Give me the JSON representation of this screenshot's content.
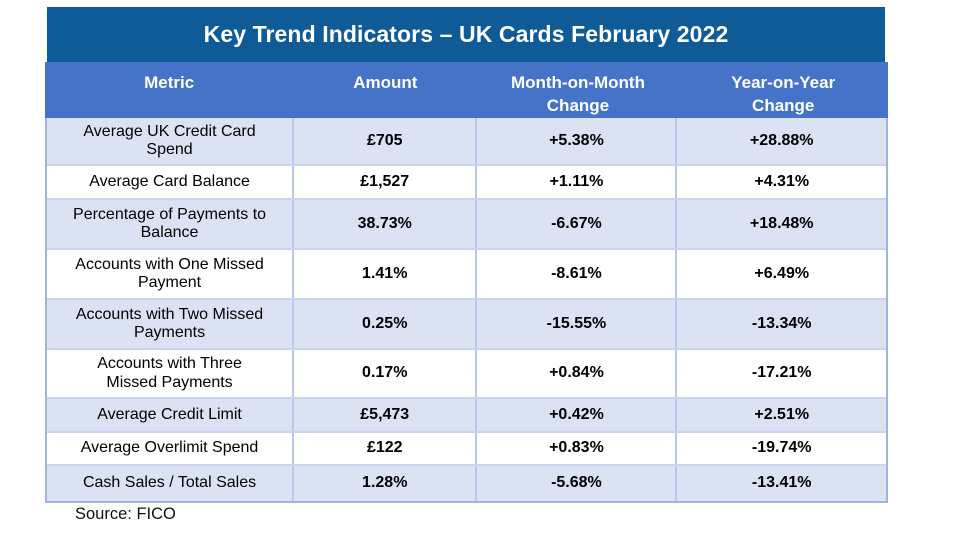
{
  "page": {
    "title": "Key Trend Indicators – UK Cards February 2022",
    "source_note": "Source: FICO"
  },
  "colors": {
    "title_band": "#0e5b97",
    "header_row": "#4573c7",
    "row_alternate": "#dae2f3",
    "row_plain": "#ffffff",
    "row_border": "#b9c8ec",
    "outer_border": "#9fb4df",
    "header_text": "#ffffff",
    "body_text": "#000000"
  },
  "chart_data": {
    "type": "table",
    "title": "Key Trend Indicators – UK Cards February 2022",
    "columns": [
      "Metric",
      "Amount",
      "Month-on-Month Change",
      "Year-on-Year Change"
    ],
    "rows": [
      {
        "metric": "Average UK Credit Card Spend",
        "amount": "£705",
        "mom_change": "+5.38%",
        "yoy_change": "+28.88%"
      },
      {
        "metric": "Average Card Balance",
        "amount": "£1,527",
        "mom_change": "+1.11%",
        "yoy_change": "+4.31%"
      },
      {
        "metric": "Percentage of Payments to Balance",
        "amount": "38.73%",
        "mom_change": "-6.67%",
        "yoy_change": "+18.48%"
      },
      {
        "metric": "Accounts with One Missed Payment",
        "amount": "1.41%",
        "mom_change": "-8.61%",
        "yoy_change": "+6.49%"
      },
      {
        "metric": "Accounts with Two Missed Payments",
        "amount": "0.25%",
        "mom_change": "-15.55%",
        "yoy_change": "-13.34%"
      },
      {
        "metric": "Accounts with Three Missed Payments",
        "amount": "0.17%",
        "mom_change": "+0.84%",
        "yoy_change": "-17.21%"
      },
      {
        "metric": "Average Credit Limit",
        "amount": "£5,473",
        "mom_change": "+0.42%",
        "yoy_change": "+2.51%"
      },
      {
        "metric": "Average Overlimit Spend",
        "amount": "£122",
        "mom_change": "+0.83%",
        "yoy_change": "-19.74%"
      },
      {
        "metric": "Cash Sales / Total Sales",
        "amount": "1.28%",
        "mom_change": "-5.68%",
        "yoy_change": "-13.41%"
      }
    ],
    "source": "Source: FICO"
  }
}
